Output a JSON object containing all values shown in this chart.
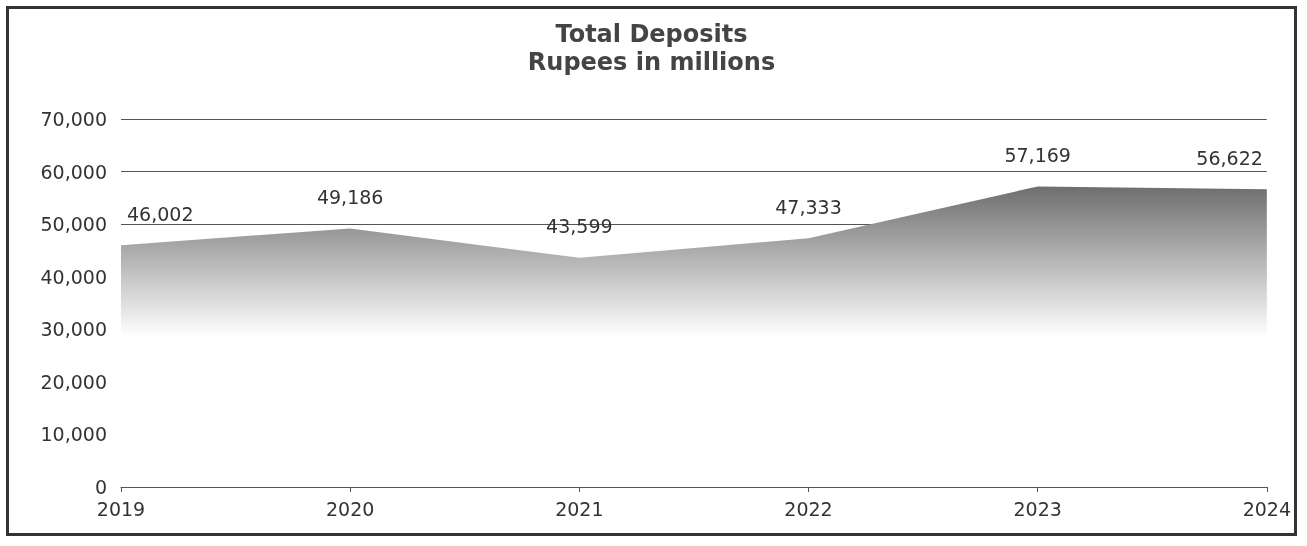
{
  "chart_data": {
    "type": "area",
    "title": "Total Deposits",
    "subtitle": "Rupees in millions",
    "categories": [
      "2019",
      "2020",
      "2021",
      "2022",
      "2023",
      "2024"
    ],
    "values": [
      46002,
      49186,
      43599,
      47333,
      57169,
      56622
    ],
    "value_labels": [
      "46,002",
      "49,186",
      "43,599",
      "47,333",
      "57,169",
      "56,622"
    ],
    "color": "#6e6e6e",
    "ylim": [
      0,
      70000
    ],
    "yticks": [
      {
        "value": 0,
        "label": "0"
      },
      {
        "value": 10000,
        "label": "10,000"
      },
      {
        "value": 20000,
        "label": "20,000"
      },
      {
        "value": 30000,
        "label": "30,000"
      },
      {
        "value": 40000,
        "label": "40,000"
      },
      {
        "value": 50000,
        "label": "50,000"
      },
      {
        "value": 60000,
        "label": "60,000"
      },
      {
        "value": 70000,
        "label": "70,000"
      }
    ],
    "grid": "y",
    "marker": "none"
  }
}
